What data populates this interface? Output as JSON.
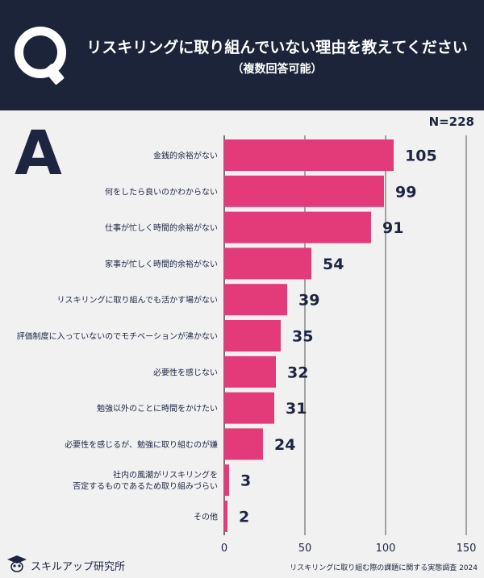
{
  "header": {
    "q_letter": "Q",
    "title": "リスキリングに取り組んでいない理由を教えてください",
    "subtitle": "（複数回答可能）"
  },
  "answer_letter": "A",
  "sample_size": "N=228",
  "footer": {
    "logo_text": "スキルアップ研究所",
    "source": "リスキリングに取り組む際の課題に関する実態調査 2024"
  },
  "colors": {
    "bar": "#e33a7a",
    "header_bg": "#1b2438",
    "text": "#1d2540"
  },
  "chart_data": {
    "type": "bar",
    "orientation": "horizontal",
    "categories": [
      [
        "金銭的余裕がない"
      ],
      [
        "何をしたら良いのかわからない"
      ],
      [
        "仕事が忙しく時間的余裕がない"
      ],
      [
        "家事が忙しく時間的余裕がない"
      ],
      [
        "リスキリングに取り組んでも活かす場がない"
      ],
      [
        "評価制度に入っていないのでモチベーションが沸かない"
      ],
      [
        "必要性を感じない"
      ],
      [
        "勉強以外のことに時間をかけたい"
      ],
      [
        "必要性を感じるが、勉強に取り組むのが嫌"
      ],
      [
        "社内の風潮がリスキリングを",
        "否定するものであるため取り組みづらい"
      ],
      [
        "その他"
      ]
    ],
    "values": [
      105,
      99,
      91,
      54,
      39,
      35,
      32,
      31,
      24,
      3,
      2
    ],
    "xlim": [
      0,
      150
    ],
    "xticks": [
      0,
      50,
      100,
      150
    ],
    "grid": true
  }
}
